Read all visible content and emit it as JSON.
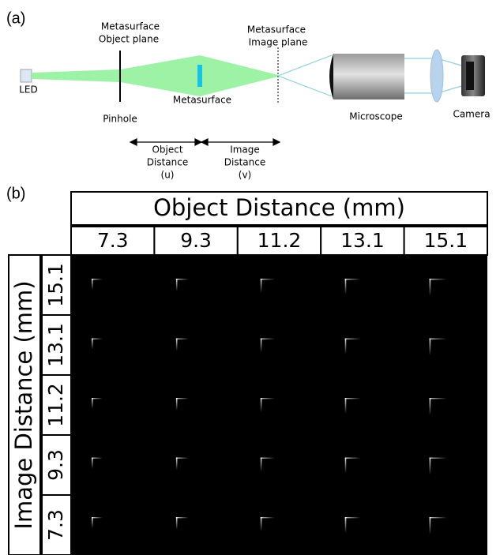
{
  "panel_a": {
    "label": "(a)",
    "led": "LED",
    "object_plane": [
      "Metasurface",
      "Object plane"
    ],
    "pinhole": "Pinhole",
    "metasurface": "Metasurface",
    "image_plane": [
      "Metasurface",
      "Image plane"
    ],
    "microscope": "Microscope",
    "camera": "Camera",
    "object_distance": [
      "Object",
      "Distance",
      "(u)"
    ],
    "image_distance": [
      "Image",
      "Distance",
      "(v)"
    ]
  },
  "panel_b": {
    "label": "(b)",
    "column_title": "Object Distance (mm)",
    "columns": [
      "7.3",
      "9.3",
      "11.2",
      "13.1",
      "15.1"
    ],
    "row_title": "Image Distance (mm)",
    "rows": [
      "15.1",
      "13.1",
      "11.2",
      "9.3",
      "7.3"
    ]
  }
}
